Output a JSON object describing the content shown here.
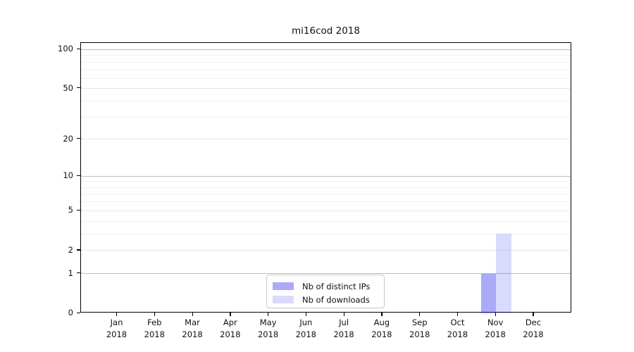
{
  "chart_data": {
    "type": "bar",
    "title": "mi16cod 2018",
    "categories": [
      "Jan",
      "Feb",
      "Mar",
      "Apr",
      "May",
      "Jun",
      "Jul",
      "Aug",
      "Sep",
      "Oct",
      "Nov",
      "Dec"
    ],
    "x_tick_second_line": "2018",
    "series": [
      {
        "name": "Nb of distinct IPs",
        "color": "rgba(70,70,240,0.46)",
        "color_flat": "#aaaaf4",
        "values": [
          0,
          0,
          0,
          0,
          0,
          0,
          0,
          0,
          0,
          0,
          1,
          0
        ]
      },
      {
        "name": "Nb of downloads",
        "color": "rgba(70,70,240,0.20)",
        "color_flat": "#dbdbfa",
        "values": [
          0,
          0,
          0,
          0,
          0,
          0,
          0,
          0,
          0,
          0,
          3,
          0
        ]
      }
    ],
    "y_axis": {
      "scale": "log10(1+value)",
      "tick_values": [
        0,
        1,
        2,
        5,
        10,
        20,
        50,
        100
      ],
      "tick_labels": [
        "0",
        "1",
        "2",
        "5",
        "10",
        "20",
        "50",
        "100"
      ],
      "grid_values": [
        1,
        2,
        3,
        4,
        5,
        6,
        7,
        8,
        9,
        10,
        20,
        30,
        40,
        50,
        60,
        70,
        80,
        90,
        100
      ],
      "decade_values": [
        1,
        10,
        100
      ],
      "labeled_values": [
        2,
        5,
        20,
        50
      ]
    },
    "ylim": [
      0,
      112
    ],
    "grid": true,
    "legend_position": "bottom-center-inside"
  },
  "legend": {
    "items": [
      "Nb of distinct IPs",
      "Nb of downloads"
    ]
  },
  "colors": {
    "bar_distinct_ips": "#aaaaf4",
    "bar_downloads": "#dbdbfa",
    "grid_decade": "#bdbdbd",
    "grid_major": "#e6e6e6",
    "grid_minor": "#f1f1f1",
    "axis": "#000000",
    "text": "#111111",
    "legend_border": "#c9c9c9"
  }
}
